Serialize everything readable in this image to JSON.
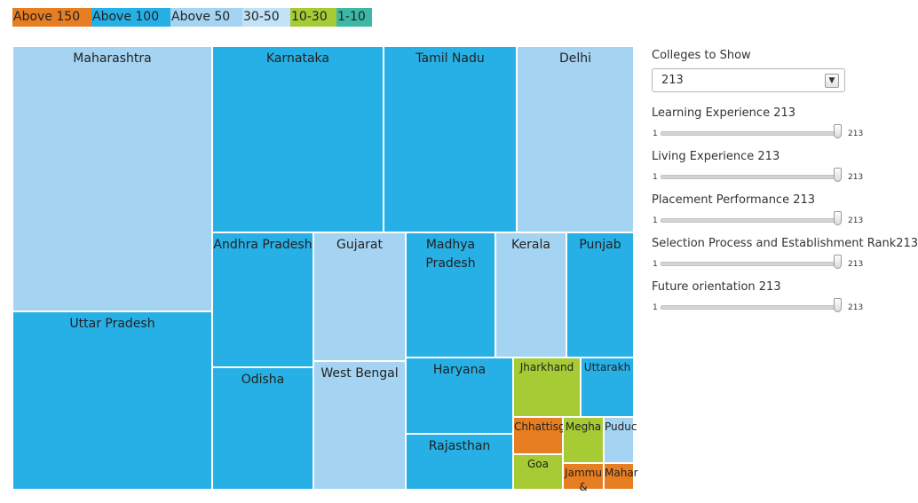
{
  "legend": [
    {
      "label": "Above 150",
      "color": "#e87e22"
    },
    {
      "label": "Above 100",
      "color": "#27b0e6"
    },
    {
      "label": "Above 50",
      "color": "#a4d4f2"
    },
    {
      "label": "30-50",
      "color": "#c2e3f7"
    },
    {
      "label": "10-30",
      "color": "#a6cb35"
    },
    {
      "label": "1-10",
      "color": "#3db8a4"
    }
  ],
  "controls": {
    "colleges_label": "Colleges to Show",
    "colleges_value": "213",
    "sliders": [
      {
        "label": "Learning Experience 213",
        "min": "1",
        "max": "213"
      },
      {
        "label": "Living Experience 213",
        "min": "1",
        "max": "213"
      },
      {
        "label": "Placement Performance 213",
        "min": "1",
        "max": "213"
      },
      {
        "label": "Selection Process and Establishment Rank213",
        "min": "1",
        "max": "213"
      },
      {
        "label": "Future orientation 213",
        "min": "1",
        "max": "213"
      }
    ]
  },
  "chart_data": {
    "type": "treemap",
    "title": "",
    "items": [
      {
        "label": "Maharashtra",
        "category": "Above 50"
      },
      {
        "label": "Uttar Pradesh",
        "category": "Above 100"
      },
      {
        "label": "Karnataka",
        "category": "Above 100"
      },
      {
        "label": "Tamil Nadu",
        "category": "Above 100"
      },
      {
        "label": "Delhi",
        "category": "Above 50"
      },
      {
        "label": "Andhra Pradesh",
        "category": "Above 100"
      },
      {
        "label": "Odisha",
        "category": "Above 100"
      },
      {
        "label": "Gujarat",
        "category": "Above 50"
      },
      {
        "label": "West Bengal",
        "category": "Above 50"
      },
      {
        "label": "Madhya Pradesh",
        "category": "Above 100"
      },
      {
        "label": "Kerala",
        "category": "Above 50"
      },
      {
        "label": "Punjab",
        "category": "Above 100"
      },
      {
        "label": "Haryana",
        "category": "Above 100"
      },
      {
        "label": "Rajasthan",
        "category": "Above 100"
      },
      {
        "label": "Jharkhand",
        "category": "10-30"
      },
      {
        "label": "Uttarakh",
        "category": "Above 100"
      },
      {
        "label": "Chhattisg",
        "category": "Above 150"
      },
      {
        "label": "Megha",
        "category": "10-30"
      },
      {
        "label": "Puduc",
        "category": "Above 50"
      },
      {
        "label": "Goa",
        "category": "10-30"
      },
      {
        "label": "Jammu &",
        "category": "Above 150"
      },
      {
        "label": "Mahar",
        "category": "Above 150"
      }
    ]
  }
}
